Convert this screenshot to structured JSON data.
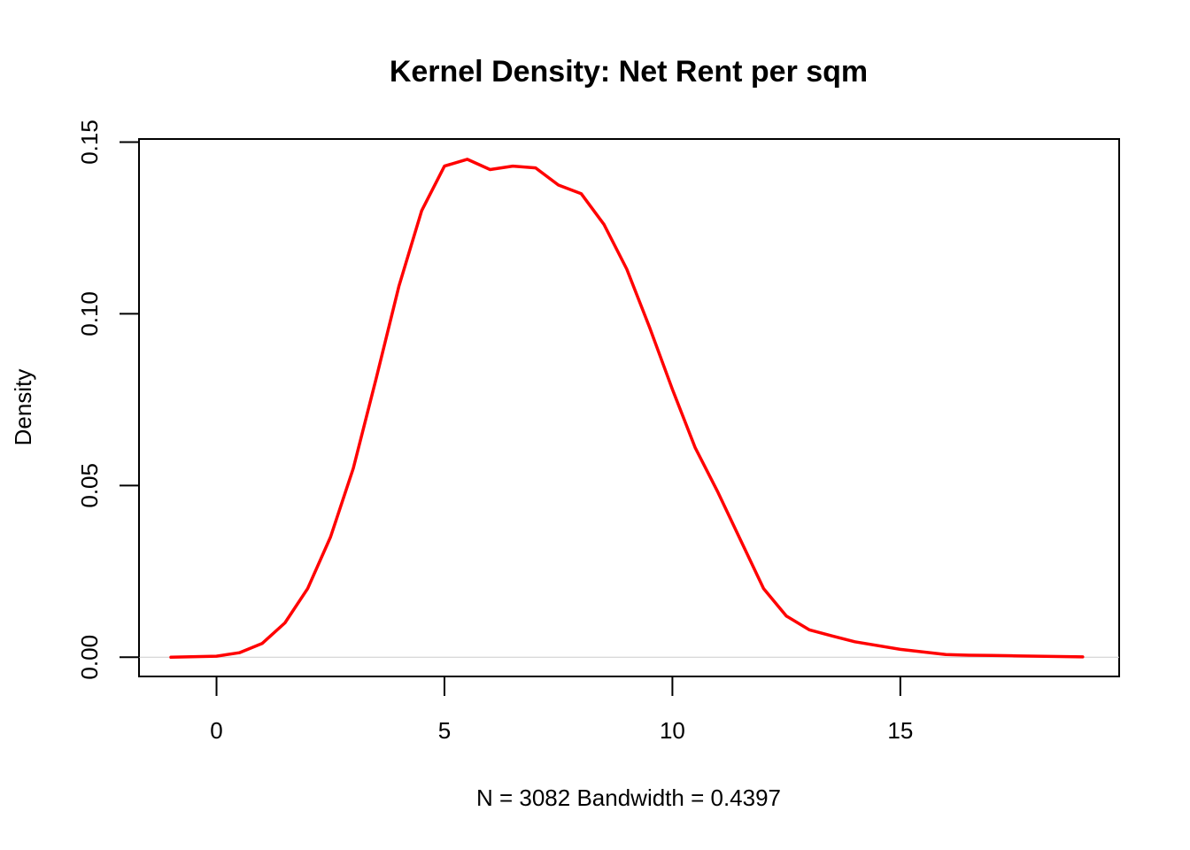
{
  "chart_data": {
    "type": "line",
    "title": "Kernel Density: Net Rent per sqm",
    "xlabel": "N = 3082   Bandwidth = 0.4397",
    "ylabel": "Density",
    "xlim": [
      -1.7,
      19.8
    ],
    "ylim": [
      -0.0056,
      0.1509
    ],
    "x_ticks": [
      0,
      5,
      10,
      15
    ],
    "x_tick_labels": [
      "0",
      "5",
      "10",
      "15"
    ],
    "y_ticks": [
      0.0,
      0.05,
      0.1,
      0.15
    ],
    "y_tick_labels": [
      "0.00",
      "0.05",
      "0.10",
      "0.15"
    ],
    "grid": false,
    "reference_line_y": 0,
    "colors": {
      "line": "#ff0000",
      "reference": "#cccccc",
      "axis": "#000000"
    },
    "series": [
      {
        "x": [
          -1.0,
          0.0,
          0.5,
          1.0,
          1.5,
          2.0,
          2.5,
          3.0,
          3.5,
          4.0,
          4.5,
          5.0,
          5.5,
          6.0,
          6.5,
          7.0,
          7.5,
          8.0,
          8.5,
          9.0,
          9.5,
          10.0,
          10.5,
          11.0,
          11.5,
          12.0,
          12.5,
          13.0,
          13.5,
          14.0,
          15.0,
          16.0,
          16.5,
          17.0,
          17.5,
          18.0,
          19.0
        ],
        "y": [
          0.0,
          0.0003,
          0.0013,
          0.004,
          0.01,
          0.02,
          0.035,
          0.055,
          0.081,
          0.108,
          0.13,
          0.143,
          0.145,
          0.142,
          0.143,
          0.1425,
          0.1375,
          0.135,
          0.126,
          0.113,
          0.096,
          0.078,
          0.061,
          0.048,
          0.034,
          0.02,
          0.012,
          0.008,
          0.0062,
          0.0045,
          0.0023,
          0.0008,
          0.0006,
          0.0005,
          0.0004,
          0.0003,
          0.0001
        ]
      }
    ]
  }
}
